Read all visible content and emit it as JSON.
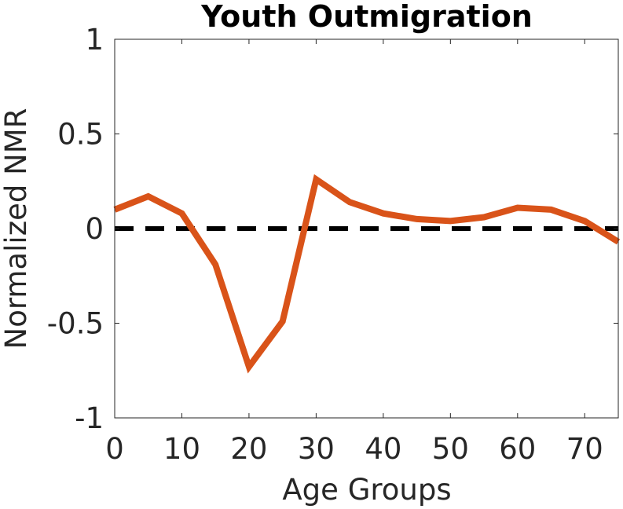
{
  "chart_data": {
    "type": "line",
    "title": "Youth Outmigration",
    "xlabel": "Age Groups",
    "ylabel": "Normalized NMR",
    "xlim": [
      0,
      75
    ],
    "ylim": [
      -1,
      1
    ],
    "xticks": [
      0,
      10,
      20,
      30,
      40,
      50,
      60,
      70
    ],
    "xtick_labels": [
      "0",
      "10",
      "20",
      "30",
      "40",
      "50",
      "60",
      "70"
    ],
    "yticks": [
      -1,
      -0.5,
      0,
      0.5,
      1
    ],
    "ytick_labels": [
      "-1",
      "-0.5",
      "0",
      "0.5",
      "1"
    ],
    "grid": false,
    "legend": "none",
    "x": [
      0,
      5,
      10,
      15,
      20,
      25,
      30,
      35,
      40,
      45,
      50,
      55,
      60,
      65,
      70,
      75
    ],
    "series": [
      {
        "values": [
          0.1,
          0.17,
          0.08,
          -0.19,
          -0.73,
          -0.49,
          0.26,
          0.14,
          0.08,
          0.05,
          0.04,
          0.06,
          0.11,
          0.1,
          0.04,
          -0.07
        ],
        "color": "#D95319",
        "style": "solid"
      }
    ],
    "reference_line": {
      "y": 0,
      "color": "#000000",
      "style": "dashed"
    }
  }
}
